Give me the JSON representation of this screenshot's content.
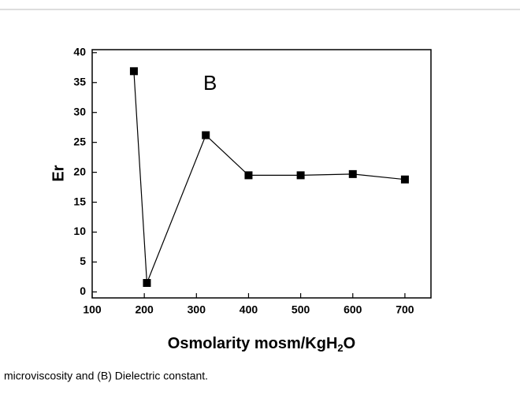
{
  "chart_data": {
    "type": "line",
    "annotation": "B",
    "xlabel": [
      "Osmolarity mosm/KgH",
      "2",
      "O"
    ],
    "ylabel": "Er",
    "caption": "microviscosity and (B) Dielectric constant.",
    "x": [
      180,
      205,
      318,
      400,
      500,
      600,
      700
    ],
    "series": [
      {
        "color": "#000000",
        "values": [
          36.9,
          1.5,
          26.2,
          19.5,
          19.5,
          19.7,
          18.8
        ]
      }
    ],
    "xlim": [
      100,
      750
    ],
    "xticks": [
      100,
      200,
      300,
      400,
      500,
      600,
      700
    ],
    "ylim": [
      -1,
      40.5
    ],
    "yticks": [
      0,
      5,
      10,
      15,
      20,
      25,
      30,
      35,
      40
    ]
  }
}
